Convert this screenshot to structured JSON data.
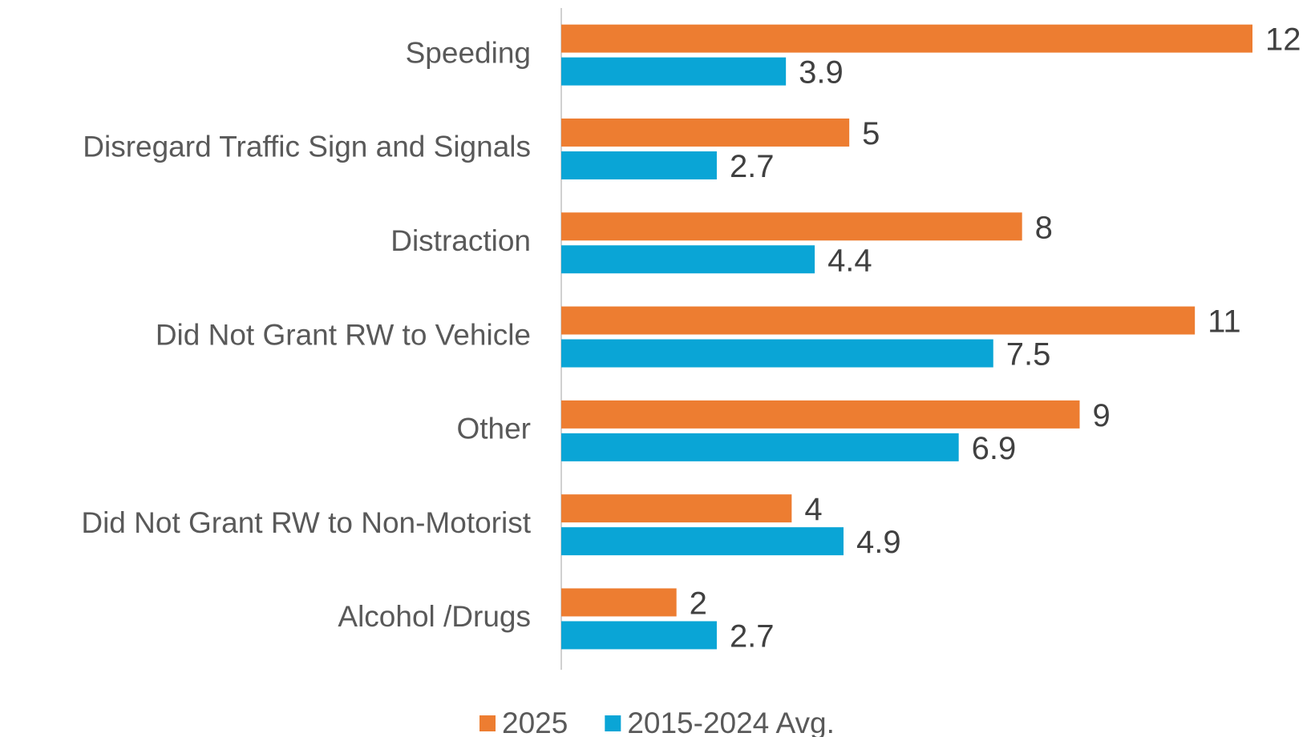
{
  "chart_data": {
    "type": "bar",
    "orientation": "horizontal",
    "categories": [
      "Speeding",
      "Disregard Traffic Sign and Signals",
      "Distraction",
      "Did Not Grant RW to Vehicle",
      "Other",
      "Did Not Grant RW to Non-Motorist",
      "Alcohol /Drugs"
    ],
    "series": [
      {
        "name": "2025",
        "color": "#ed7d31",
        "values": [
          12,
          5,
          8,
          11,
          9,
          4,
          2
        ]
      },
      {
        "name": "2015-2024 Avg.",
        "color": "#0aa5d6",
        "values": [
          3.9,
          2.7,
          4.4,
          7.5,
          6.9,
          4.9,
          2.7
        ]
      }
    ],
    "legend": "bottom"
  }
}
